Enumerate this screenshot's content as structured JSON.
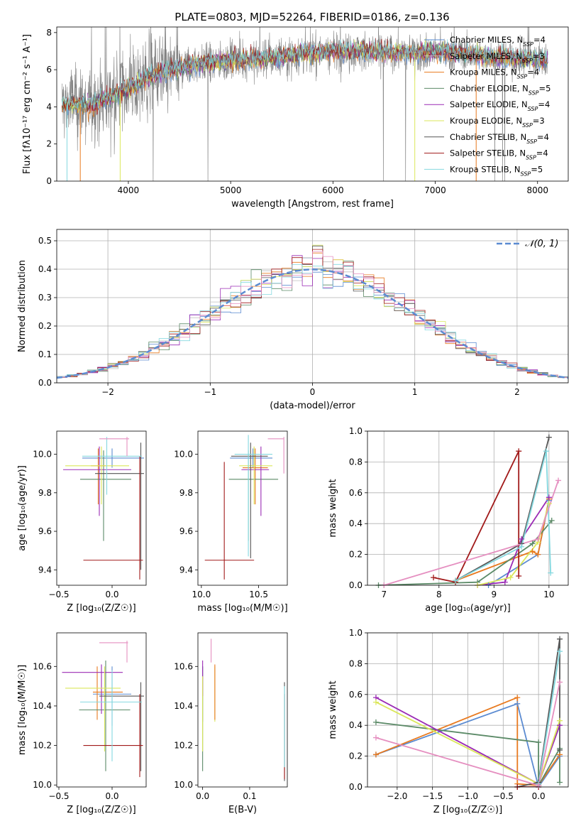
{
  "figure_title": "PLATE=0803, MJD=52264, FIBERID=0186, z=0.136",
  "colors": {
    "Chabrier MILES": "#5b8bd1",
    "Salpeter MILES": "#bfbfbf",
    "Kroupa MILES": "#e8791e",
    "Chabrier ELODIE": "#5b8a67",
    "Salpeter ELODIE": "#9b2bb5",
    "Kroupa ELODIE": "#dbe75a",
    "Chabrier STELIB": "#555555",
    "Salpeter STELIB": "#a11a1a",
    "Kroupa STELIB": "#84d8df",
    "data": "#808080",
    "pink": "#e58fc0"
  },
  "chart_data": [
    {
      "id": "spectrum",
      "type": "line",
      "xlabel": "wavelength [Angstrom, rest frame]",
      "ylabel": "Flux [fλ10⁻¹⁷ erg cm⁻² s⁻¹ A⁻¹]",
      "xlim": [
        3300,
        8300
      ],
      "ylim": [
        0,
        8.3
      ],
      "xticks": [
        4000,
        5000,
        6000,
        7000,
        8000
      ],
      "yticks": [
        0,
        2,
        4,
        6,
        8
      ],
      "legend": "upper-right",
      "series": [
        {
          "name": "Chabrier MILES, N_SSP=4"
        },
        {
          "name": "Salpeter MILES, N_SSP=3"
        },
        {
          "name": "Kroupa MILES, N_SSP=4"
        },
        {
          "name": "Chabrier ELODIE, N_SSP=5"
        },
        {
          "name": "Salpeter ELODIE, N_SSP=4"
        },
        {
          "name": "Kroupa ELODIE, N_SSP=3"
        },
        {
          "name": "Chabrier STELIB, N_SSP=4"
        },
        {
          "name": "Salpeter STELIB, N_SSP=4"
        },
        {
          "name": "Kroupa STELIB, N_SSP=5"
        }
      ],
      "model_continuum": {
        "x": [
          3350,
          3500,
          3600,
          3800,
          4000,
          4200,
          4500,
          4800,
          5000,
          5300,
          5600,
          6000,
          6300,
          6600,
          7000,
          7400,
          7800,
          8100
        ],
        "y": [
          4.1,
          4.2,
          4.1,
          4.5,
          5.0,
          5.6,
          6.1,
          6.4,
          6.5,
          6.6,
          6.8,
          7.0,
          7.0,
          6.9,
          7.0,
          6.8,
          6.6,
          6.5
        ]
      }
    },
    {
      "id": "residuals",
      "type": "line",
      "xlabel": "(data-model)/error",
      "ylabel": "Normed distribution",
      "xlim": [
        -2.5,
        2.5
      ],
      "ylim": [
        0,
        0.54
      ],
      "xticks": [
        -2,
        -1,
        0,
        1,
        2
      ],
      "yticks": [
        0.0,
        0.1,
        0.2,
        0.3,
        0.4,
        0.5
      ],
      "grid": true,
      "legend": "upper-right",
      "normal_label": "𝒩(0, 1)"
    },
    {
      "id": "age-vs-Z",
      "type": "scatter",
      "xlabel": "Z [log₁₀(Z/Z☉)]",
      "ylabel": "age  [log₁₀(age/yr)]",
      "xlim": [
        -0.52,
        0.32
      ],
      "ylim": [
        9.32,
        10.12
      ],
      "xticks": [
        -0.5,
        0.0
      ],
      "yticks": [
        9.4,
        9.6,
        9.8,
        10.0
      ],
      "points": [
        {
          "c": "Chabrier MILES",
          "x": 0.0,
          "y": 9.98,
          "ex": [
            -0.28,
            0.3
          ],
          "ey": [
            9.93,
            10.03
          ]
        },
        {
          "c": "Kroupa MILES",
          "x": -0.13,
          "y": 9.94,
          "ex": [
            -0.2,
            -0.06
          ],
          "ey": [
            9.74,
            10.03
          ]
        },
        {
          "c": "Chabrier ELODIE",
          "x": -0.08,
          "y": 9.87,
          "ex": [
            -0.3,
            0.18
          ],
          "ey": [
            9.55,
            10.02
          ]
        },
        {
          "c": "Salpeter ELODIE",
          "x": -0.12,
          "y": 9.92,
          "ex": [
            -0.46,
            0.18
          ],
          "ey": [
            9.68,
            10.04
          ]
        },
        {
          "c": "Kroupa ELODIE",
          "x": -0.1,
          "y": 9.94,
          "ex": [
            -0.44,
            0.16
          ],
          "ey": [
            9.74,
            10.04
          ]
        },
        {
          "c": "Chabrier STELIB",
          "x": 0.27,
          "y": 9.9,
          "ex": [
            -0.16,
            0.3
          ],
          "ey": [
            9.4,
            10.06
          ]
        },
        {
          "c": "Salpeter STELIB",
          "x": 0.26,
          "y": 9.45,
          "ex": [
            -0.27,
            0.29
          ],
          "ey": [
            9.35,
            9.99
          ]
        },
        {
          "c": "Kroupa STELIB",
          "x": -0.05,
          "y": 9.99,
          "ex": [
            -0.28,
            0.28
          ],
          "ey": [
            9.79,
            10.09
          ]
        },
        {
          "c": "pink",
          "x": 0.14,
          "y": 10.08,
          "ex": [
            -0.12,
            0.16
          ],
          "ey": [
            9.99,
            10.09
          ]
        }
      ]
    },
    {
      "id": "age-vs-mass",
      "type": "scatter",
      "xlabel": "mass [log₁₀(M/M☉)]",
      "ylabel": "",
      "xlim": [
        9.97,
        10.75
      ],
      "ylim": [
        9.32,
        10.12
      ],
      "xticks": [
        10.0,
        10.5
      ],
      "yticks": [
        9.4,
        9.6,
        9.8,
        10.0
      ],
      "points": [
        {
          "c": "Chabrier MILES",
          "x": 10.45,
          "y": 9.98,
          "ex": [
            10.25,
            10.62
          ],
          "ey": [
            9.93,
            10.03
          ]
        },
        {
          "c": "Kroupa MILES",
          "x": 10.47,
          "y": 9.93,
          "ex": [
            10.36,
            10.58
          ],
          "ey": [
            9.74,
            10.03
          ]
        },
        {
          "c": "Chabrier ELODIE",
          "x": 10.41,
          "y": 9.87,
          "ex": [
            10.24,
            10.67
          ],
          "ey": [
            9.55,
            10.02
          ]
        },
        {
          "c": "Salpeter ELODIE",
          "x": 10.52,
          "y": 9.92,
          "ex": [
            10.35,
            10.59
          ],
          "ey": [
            9.68,
            10.04
          ]
        },
        {
          "c": "Kroupa ELODIE",
          "x": 10.46,
          "y": 9.94,
          "ex": [
            10.33,
            10.62
          ],
          "ey": [
            9.74,
            10.04
          ]
        },
        {
          "c": "Chabrier STELIB",
          "x": 10.43,
          "y": 9.99,
          "ex": [
            10.26,
            10.58
          ],
          "ey": [
            9.46,
            10.06
          ]
        },
        {
          "c": "Salpeter STELIB",
          "x": 10.2,
          "y": 9.45,
          "ex": [
            10.03,
            10.46
          ],
          "ey": [
            9.35,
            9.96
          ]
        },
        {
          "c": "Kroupa STELIB",
          "x": 10.41,
          "y": 10.0,
          "ex": [
            10.29,
            10.62
          ],
          "ey": [
            9.47,
            10.1
          ]
        },
        {
          "c": "pink",
          "x": 10.72,
          "y": 10.08,
          "ex": [
            10.58,
            10.72
          ],
          "ey": [
            9.9,
            10.09
          ]
        }
      ]
    },
    {
      "id": "weight-vs-age",
      "type": "line",
      "xlabel": "age  [log₁₀(age/yr)]",
      "ylabel": "mass weight",
      "xlim": [
        6.7,
        10.35
      ],
      "ylim": [
        0,
        1.0
      ],
      "xticks": [
        7,
        8,
        9,
        10
      ],
      "yticks": [
        0.0,
        0.2,
        0.4,
        0.6,
        0.8,
        1.0
      ],
      "grid": true,
      "series": [
        {
          "c": "Chabrier MILES",
          "x": [
            8.9,
            9.8,
            10.0
          ],
          "y": [
            0.0,
            0.2,
            0.55
          ]
        },
        {
          "c": "Kroupa MILES",
          "x": [
            8.3,
            9.7,
            9.8,
            10.0
          ],
          "y": [
            0.03,
            0.22,
            0.2,
            0.56
          ]
        },
        {
          "c": "Chabrier ELODIE",
          "x": [
            6.9,
            8.7,
            9.7,
            10.05
          ],
          "y": [
            0.0,
            0.02,
            0.27,
            0.42
          ]
        },
        {
          "c": "Salpeter ELODIE",
          "x": [
            8.7,
            9.2,
            9.5,
            10.0
          ],
          "y": [
            0.0,
            0.02,
            0.3,
            0.57
          ]
        },
        {
          "c": "Kroupa ELODIE",
          "x": [
            8.7,
            9.3,
            9.8,
            10.0
          ],
          "y": [
            0.0,
            0.05,
            0.28,
            0.53
          ]
        },
        {
          "c": "Chabrier STELIB",
          "x": [
            8.3,
            9.5,
            10.0
          ],
          "y": [
            0.03,
            0.27,
            0.96
          ]
        },
        {
          "c": "Salpeter STELIB",
          "x": [
            7.9,
            8.3,
            9.45,
            9.45
          ],
          "y": [
            0.05,
            0.02,
            0.87,
            0.06
          ]
        },
        {
          "c": "Kroupa STELIB",
          "x": [
            8.3,
            9.5,
            9.95,
            10.03
          ],
          "y": [
            0.03,
            0.25,
            0.87,
            0.08
          ]
        },
        {
          "c": "pink",
          "x": [
            7.0,
            9.8,
            10.17
          ],
          "y": [
            0.0,
            0.3,
            0.68
          ]
        }
      ]
    },
    {
      "id": "mass-vs-Z",
      "type": "scatter",
      "xlabel": "Z [log₁₀(Z/Z☉)]",
      "ylabel": "mass [log₁₀(M/M☉)]",
      "xlim": [
        -0.52,
        0.32
      ],
      "ylim": [
        9.99,
        10.77
      ],
      "xticks": [
        -0.5,
        0.0
      ],
      "yticks": [
        10.0,
        10.2,
        10.4,
        10.6
      ],
      "points": [
        {
          "c": "Chabrier MILES",
          "x": 0.0,
          "y": 10.46,
          "ex": [
            -0.18,
            0.18
          ],
          "ey": [
            10.3,
            10.6
          ]
        },
        {
          "c": "Kroupa MILES",
          "x": -0.14,
          "y": 10.47,
          "ex": [
            -0.18,
            0.1
          ],
          "ey": [
            10.33,
            10.6
          ]
        },
        {
          "c": "Chabrier ELODIE",
          "x": -0.06,
          "y": 10.38,
          "ex": [
            -0.31,
            0.17
          ],
          "ey": [
            10.07,
            10.63
          ]
        },
        {
          "c": "Salpeter ELODIE",
          "x": -0.1,
          "y": 10.57,
          "ex": [
            -0.47,
            0.1
          ],
          "ey": [
            10.36,
            10.61
          ]
        },
        {
          "c": "Kroupa ELODIE",
          "x": -0.07,
          "y": 10.49,
          "ex": [
            -0.44,
            0.08
          ],
          "ey": [
            10.17,
            10.6
          ]
        },
        {
          "c": "Chabrier STELIB",
          "x": 0.27,
          "y": 10.45,
          "ex": [
            -0.12,
            0.3
          ],
          "ey": [
            10.07,
            10.52
          ]
        },
        {
          "c": "Salpeter STELIB",
          "x": 0.26,
          "y": 10.2,
          "ex": [
            -0.27,
            0.29
          ],
          "ey": [
            10.04,
            10.46
          ]
        },
        {
          "c": "Kroupa STELIB",
          "x": 0.0,
          "y": 10.42,
          "ex": [
            -0.3,
            0.28
          ],
          "ey": [
            10.12,
            10.58
          ]
        },
        {
          "c": "pink",
          "x": 0.14,
          "y": 10.72,
          "ex": [
            -0.12,
            0.15
          ],
          "ey": [
            10.62,
            10.73
          ]
        }
      ]
    },
    {
      "id": "mass-vs-EBV",
      "type": "scatter",
      "xlabel": "E(B-V)",
      "ylabel": "",
      "xlim": [
        -0.01,
        0.18
      ],
      "ylim": [
        9.99,
        10.77
      ],
      "xticks": [
        0.0,
        0.1
      ],
      "yticks": [
        10.0,
        10.2,
        10.4,
        10.6
      ],
      "points": [
        {
          "c": "Chabrier MILES",
          "x": 0.0,
          "y": 10.5,
          "ey": [
            10.32,
            10.6
          ]
        },
        {
          "c": "Chabrier ELODIE",
          "x": 0.0,
          "y": 10.38,
          "ey": [
            10.07,
            10.6
          ]
        },
        {
          "c": "Salpeter ELODIE",
          "x": 0.0,
          "y": 10.57,
          "ey": [
            10.45,
            10.63
          ]
        },
        {
          "c": "Kroupa ELODIE",
          "x": 0.0,
          "y": 10.49,
          "ey": [
            10.17,
            10.55
          ]
        },
        {
          "c": "Kroupa ELODIE",
          "x": 0.026,
          "y": 10.49,
          "ey": [
            10.32,
            10.6
          ]
        },
        {
          "c": "Kroupa MILES",
          "x": 0.026,
          "y": 10.5,
          "ey": [
            10.33,
            10.61
          ]
        },
        {
          "c": "pink",
          "x": 0.018,
          "y": 10.72,
          "ey": [
            10.62,
            10.74
          ]
        },
        {
          "c": "Chabrier STELIB",
          "x": 0.174,
          "y": 10.45,
          "ey": [
            10.02,
            10.52
          ]
        },
        {
          "c": "Salpeter STELIB",
          "x": 0.174,
          "y": 10.2,
          "ey": [
            10.03,
            10.46
          ]
        },
        {
          "c": "Kroupa STELIB",
          "x": 0.174,
          "y": 10.42,
          "ey": [
            10.09,
            10.5
          ]
        }
      ]
    },
    {
      "id": "weight-vs-Z",
      "type": "line",
      "xlabel": "Z [log₁₀(Z/Z☉)]",
      "ylabel": "mass weight",
      "xlim": [
        -2.42,
        0.42
      ],
      "ylim": [
        0,
        1.0
      ],
      "xticks": [
        -2.0,
        -1.5,
        -1.0,
        -0.5,
        0.0
      ],
      "yticks": [
        0.0,
        0.2,
        0.4,
        0.6,
        0.8,
        1.0
      ],
      "grid": true,
      "series": [
        {
          "c": "Chabrier MILES",
          "x": [
            -2.3,
            -0.3,
            0.0,
            0.3
          ],
          "y": [
            0.21,
            0.54,
            0.0,
            0.2
          ]
        },
        {
          "c": "Kroupa MILES",
          "x": [
            -2.3,
            -0.3,
            -0.3,
            0.0,
            0.3
          ],
          "y": [
            0.21,
            0.58,
            0.02,
            0.01,
            0.21
          ]
        },
        {
          "c": "Chabrier ELODIE",
          "x": [
            -2.3,
            0.0,
            0.0,
            0.3,
            0.3
          ],
          "y": [
            0.42,
            0.29,
            0.01,
            0.25,
            0.03
          ]
        },
        {
          "c": "Salpeter ELODIE",
          "x": [
            -2.3,
            0.0,
            0.3
          ],
          "y": [
            0.58,
            0.02,
            0.4
          ]
        },
        {
          "c": "Kroupa ELODIE",
          "x": [
            -2.3,
            0.0,
            0.3
          ],
          "y": [
            0.55,
            0.02,
            0.43
          ]
        },
        {
          "c": "Chabrier STELIB",
          "x": [
            -0.3,
            0.0,
            0.3,
            0.3
          ],
          "y": [
            0.0,
            0.03,
            0.96,
            0.24
          ]
        },
        {
          "c": "Salpeter STELIB",
          "x": [
            -0.3,
            0.0
          ],
          "y": [
            0.0,
            0.0
          ]
        },
        {
          "c": "Kroupa STELIB",
          "x": [
            0.0,
            0.3
          ],
          "y": [
            0.02,
            0.88
          ]
        },
        {
          "c": "pink",
          "x": [
            -2.3,
            0.0,
            0.3
          ],
          "y": [
            0.32,
            0.01,
            0.68
          ]
        }
      ]
    }
  ]
}
